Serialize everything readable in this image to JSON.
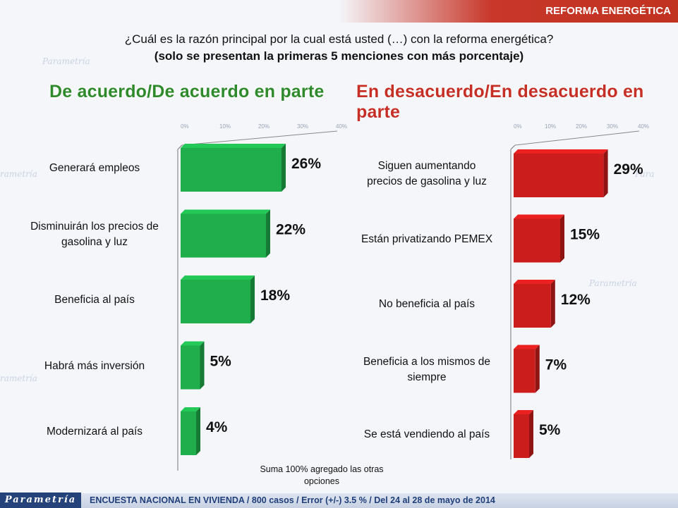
{
  "header": {
    "title": "REFORMA ENERGÉTICA"
  },
  "question": {
    "line1": "¿Cuál es la razón principal por la cual está usted (…) con la reforma energética?",
    "line2": "(solo se presentan la primeras 5 menciones con más porcentaje)"
  },
  "sections": {
    "left_title": "De acuerdo/De acuerdo en parte",
    "right_title": "En desacuerdo/En desacuerdo en parte"
  },
  "chart_data": [
    {
      "type": "bar",
      "orientation": "horizontal",
      "title": "De acuerdo/De acuerdo en parte",
      "categories": [
        "Generará empleos",
        "Disminuirán los precios de gasolina y luz",
        "Beneficia al país",
        "Habrá más inversión",
        "Modernizará al país"
      ],
      "values": [
        26,
        22,
        18,
        5,
        4
      ],
      "value_labels": [
        "26%",
        "22%",
        "18%",
        "5%",
        "4%"
      ],
      "axis_ticks": [
        "0%",
        "10%",
        "20%",
        "30%",
        "40%"
      ],
      "xlim": [
        0,
        40
      ],
      "color": "#1fae4b"
    },
    {
      "type": "bar",
      "orientation": "horizontal",
      "title": "En desacuerdo/En desacuerdo en parte",
      "categories": [
        "Siguen aumentando precios de gasolina y luz",
        "Están privatizando PEMEX",
        "No beneficia al país",
        "Beneficia a los mismos de siempre",
        "Se está vendiendo al país"
      ],
      "values": [
        29,
        15,
        12,
        7,
        5
      ],
      "value_labels": [
        "29%",
        "15%",
        "12%",
        "7%",
        "5%"
      ],
      "axis_ticks": [
        "0%",
        "10%",
        "20%",
        "30%",
        "40%"
      ],
      "xlim": [
        0,
        40
      ],
      "color": "#cc1d1d"
    }
  ],
  "labels": {
    "left": [
      "Generará empleos",
      "Disminuirán los precios de\ngasolina y luz",
      "Beneficia al país",
      "Habrá más inversión",
      "Modernizará al país"
    ],
    "right": [
      "Siguen aumentando\nprecios de gasolina y luz",
      "Están privatizando PEMEX",
      "No beneficia al país",
      "Beneficia a los mismos de\nsiempre",
      "Se está vendiendo al país"
    ]
  },
  "note": "Suma 100% agregado las otras opciones",
  "footer": {
    "logo": "Parametría",
    "text": "ENCUESTA NACIONAL EN VIVIENDA / 800 casos / Error (+/-) 3.5 % / Del 24 al 28 de mayo de 2014"
  },
  "colors": {
    "accent": "#c8372a",
    "green": "#1fae4b",
    "red": "#cc1d1d",
    "footer_text": "#1f3e7a"
  }
}
